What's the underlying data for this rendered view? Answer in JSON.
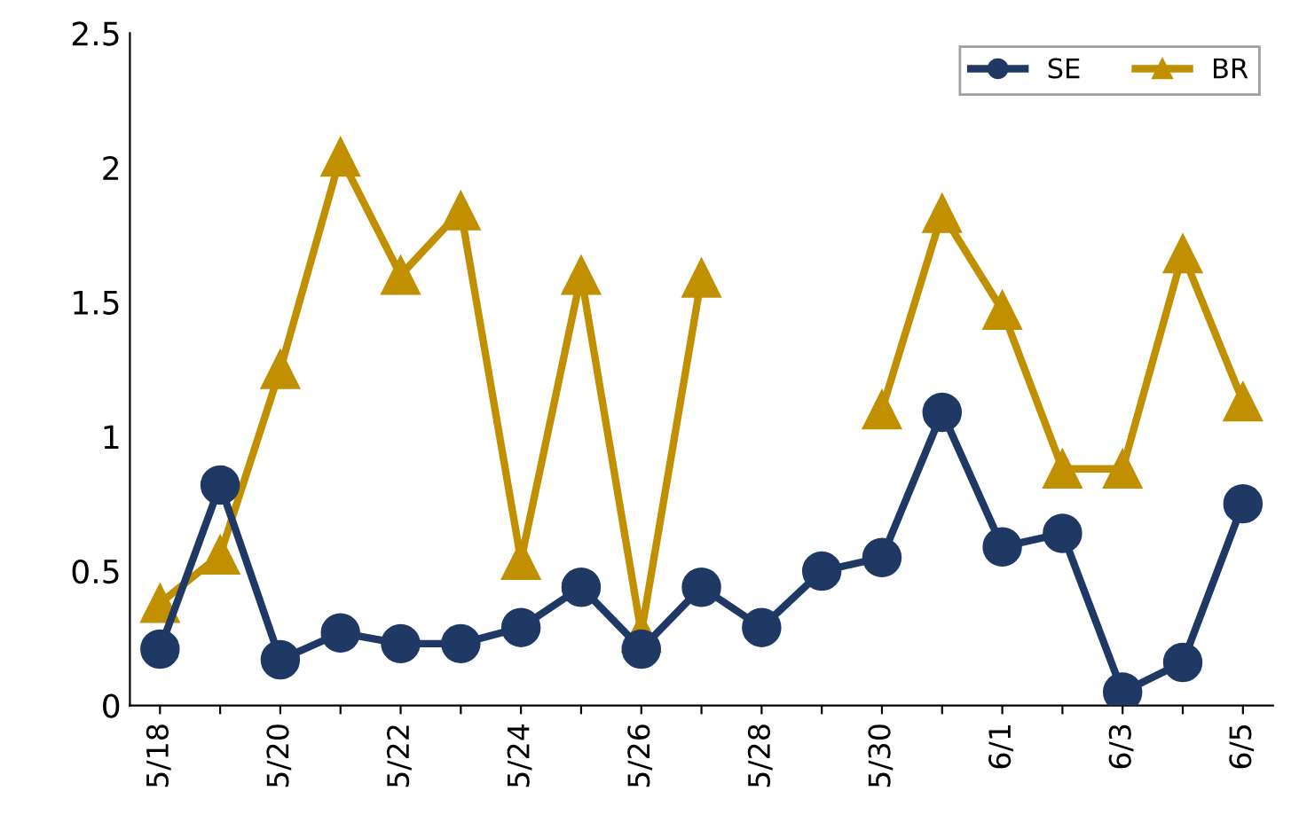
{
  "chart_data": {
    "type": "line",
    "categories": [
      "5/18",
      null,
      "5/20",
      null,
      "5/22",
      null,
      "5/24",
      null,
      "5/26",
      null,
      "5/28",
      null,
      "5/30",
      null,
      "6/1",
      null,
      "6/3",
      null,
      "6/5"
    ],
    "series": [
      {
        "name": "SE",
        "color": "#1f3864",
        "marker": "circle",
        "values": [
          0.21,
          0.82,
          0.17,
          0.27,
          0.23,
          0.23,
          0.29,
          0.44,
          0.21,
          0.44,
          0.29,
          0.5,
          0.55,
          1.09,
          0.59,
          0.64,
          0.05,
          0.16,
          0.75
        ]
      },
      {
        "name": "BR",
        "color": "#c09000",
        "marker": "triangle",
        "values": [
          0.38,
          0.56,
          1.25,
          2.04,
          1.6,
          1.84,
          0.54,
          1.6,
          0.27,
          1.59,
          null,
          null,
          1.1,
          1.83,
          1.47,
          0.88,
          0.88,
          1.68,
          1.13
        ]
      }
    ],
    "ylim": [
      0,
      2.5
    ],
    "yticks": [
      0,
      0.5,
      1,
      1.5,
      2,
      2.5
    ],
    "grid": false,
    "legend": "top right"
  }
}
